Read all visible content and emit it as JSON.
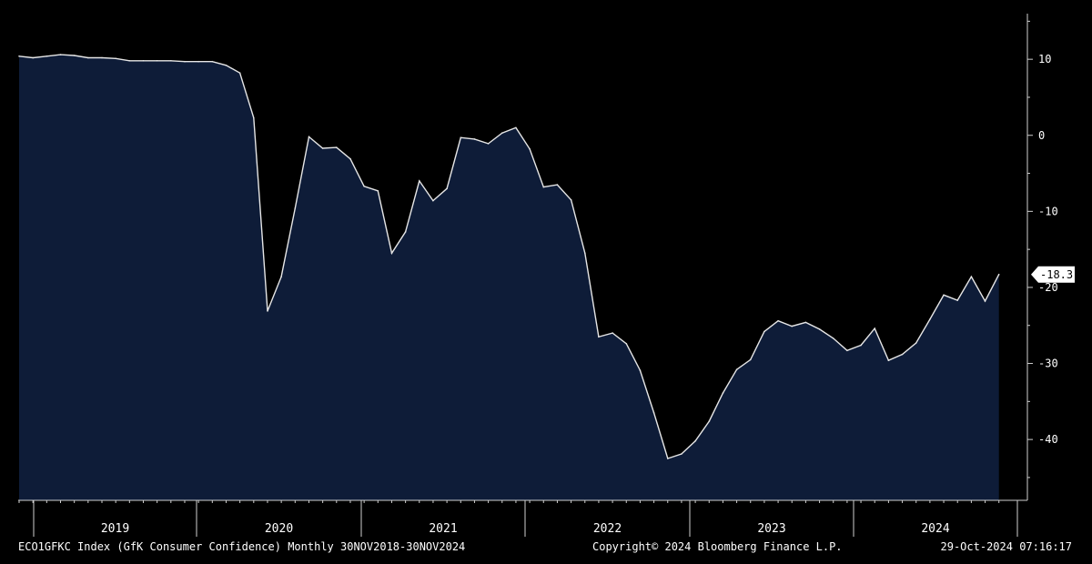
{
  "chart_data": {
    "type": "area",
    "x": [
      "2018-11",
      "2018-12",
      "2019-01",
      "2019-02",
      "2019-03",
      "2019-04",
      "2019-05",
      "2019-06",
      "2019-07",
      "2019-08",
      "2019-09",
      "2019-10",
      "2019-11",
      "2019-12",
      "2020-01",
      "2020-02",
      "2020-03",
      "2020-04",
      "2020-05",
      "2020-06",
      "2020-07",
      "2020-08",
      "2020-09",
      "2020-10",
      "2020-11",
      "2020-12",
      "2021-01",
      "2021-02",
      "2021-03",
      "2021-04",
      "2021-05",
      "2021-06",
      "2021-07",
      "2021-08",
      "2021-09",
      "2021-10",
      "2021-11",
      "2021-12",
      "2022-01",
      "2022-02",
      "2022-03",
      "2022-04",
      "2022-05",
      "2022-06",
      "2022-07",
      "2022-08",
      "2022-09",
      "2022-10",
      "2022-11",
      "2022-12",
      "2023-01",
      "2023-02",
      "2023-03",
      "2023-04",
      "2023-05",
      "2023-06",
      "2023-07",
      "2023-08",
      "2023-09",
      "2023-10",
      "2023-11",
      "2023-12",
      "2024-01",
      "2024-02",
      "2024-03",
      "2024-04",
      "2024-05",
      "2024-06",
      "2024-07",
      "2024-08",
      "2024-09",
      "2024-10"
    ],
    "values": [
      10.4,
      10.2,
      10.4,
      10.6,
      10.5,
      10.2,
      10.2,
      10.1,
      9.8,
      9.8,
      9.8,
      9.8,
      9.7,
      9.7,
      9.7,
      9.2,
      8.2,
      2.3,
      -23.1,
      -18.6,
      -9.6,
      -0.2,
      -1.7,
      -1.6,
      -3.1,
      -6.7,
      -7.3,
      -15.5,
      -12.7,
      -6.0,
      -8.6,
      -7.0,
      -0.3,
      -0.5,
      -1.1,
      0.3,
      1.0,
      -1.8,
      -6.8,
      -6.5,
      -8.5,
      -15.5,
      -26.5,
      -26.0,
      -27.4,
      -30.9,
      -36.5,
      -42.5,
      -41.9,
      -40.2,
      -37.6,
      -33.9,
      -30.8,
      -29.5,
      -25.8,
      -24.4,
      -25.1,
      -24.6,
      -25.5,
      -26.7,
      -28.3,
      -27.6,
      -25.4,
      -29.6,
      -28.8,
      -27.3,
      -24.2,
      -21.0,
      -21.7,
      -18.6,
      -21.8,
      -18.3
    ],
    "ylim": [
      -48,
      16
    ],
    "yticks": [
      "10",
      "0",
      "-10",
      "-20",
      "-30",
      "-40"
    ],
    "xtick_labels": [
      "2019",
      "2020",
      "2021",
      "2022",
      "2023",
      "2024"
    ],
    "last_value_label": "-18.3",
    "grid": false,
    "colors": {
      "background": "#000000",
      "fill": "#0e1c38",
      "line": "#e6e6e6",
      "axis": "#cfcfcf",
      "text": "#ffffff"
    }
  },
  "footer": {
    "left": "ECO1GFKC Index (GfK Consumer Confidence)  Monthly 30NOV2018-30NOV2024",
    "center": "Copyright© 2024 Bloomberg Finance L.P.",
    "right": "29-Oct-2024 07:16:17"
  }
}
